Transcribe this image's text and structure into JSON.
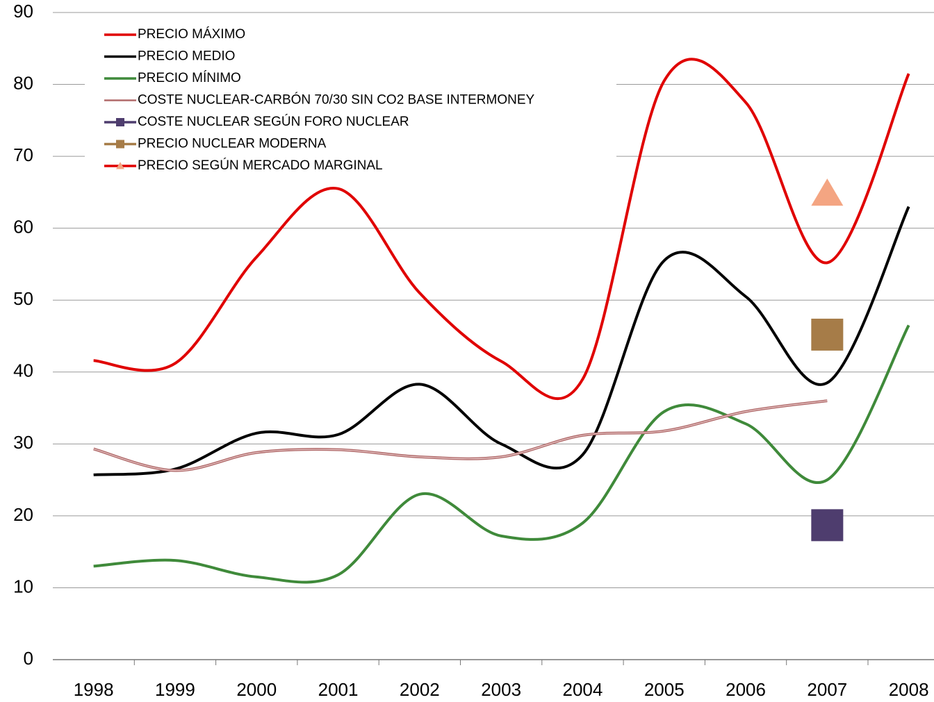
{
  "chart_data": {
    "type": "line",
    "categories": [
      "1998",
      "1999",
      "2000",
      "2001",
      "2002",
      "2003",
      "2004",
      "2005",
      "2006",
      "2007",
      "2008"
    ],
    "ylim": [
      0,
      90
    ],
    "yticks": [
      0,
      10,
      20,
      30,
      40,
      50,
      60,
      70,
      80,
      90
    ],
    "grid": true,
    "smooth": true,
    "legend": "upper left",
    "series": [
      {
        "name": "PRECIO MÁXIMO",
        "color": "#e00000",
        "values": [
          41.6,
          41.2,
          56,
          65.5,
          51,
          41.5,
          39,
          80.5,
          77.5,
          55.2,
          81.5
        ]
      },
      {
        "name": "PRECIO MEDIO",
        "color": "#000000",
        "values": [
          25.7,
          26.5,
          31.5,
          31.3,
          38.3,
          30,
          28.5,
          55.5,
          50.5,
          38.5,
          63
        ]
      },
      {
        "name": "PRECIO MÍNIMO",
        "color": "#3f8a3a",
        "values": [
          13,
          13.8,
          11.5,
          11.8,
          23,
          17.2,
          19,
          34.5,
          32.8,
          25,
          46.5
        ]
      },
      {
        "name": "COSTE NUCLEAR-CARBÓN 70/30 SIN CO2 BASE INTERMONEY",
        "color": "#b06a6a",
        "values": [
          29.3,
          26.3,
          28.8,
          29.2,
          28.2,
          28.2,
          31.2,
          31.8,
          34.5,
          36,
          null
        ]
      },
      {
        "name": "COSTE NUCLEAR SEGÚN FORO NUCLEAR",
        "color": "#4e3d6e",
        "marker": "square",
        "values": [
          null,
          null,
          null,
          null,
          null,
          null,
          null,
          null,
          null,
          18.7,
          null
        ]
      },
      {
        "name": "PRECIO NUCLEAR MODERNA",
        "color": "#a67c48",
        "marker": "square",
        "values": [
          null,
          null,
          null,
          null,
          null,
          null,
          null,
          null,
          null,
          45.2,
          null
        ]
      },
      {
        "name": "PRECIO SEGÚN MERCADO MARGINAL",
        "color": "#f4a582",
        "marker": "triangle",
        "legend_line_color": "#e00000",
        "values": [
          null,
          null,
          null,
          null,
          null,
          null,
          null,
          null,
          null,
          64.8,
          null
        ]
      }
    ]
  }
}
